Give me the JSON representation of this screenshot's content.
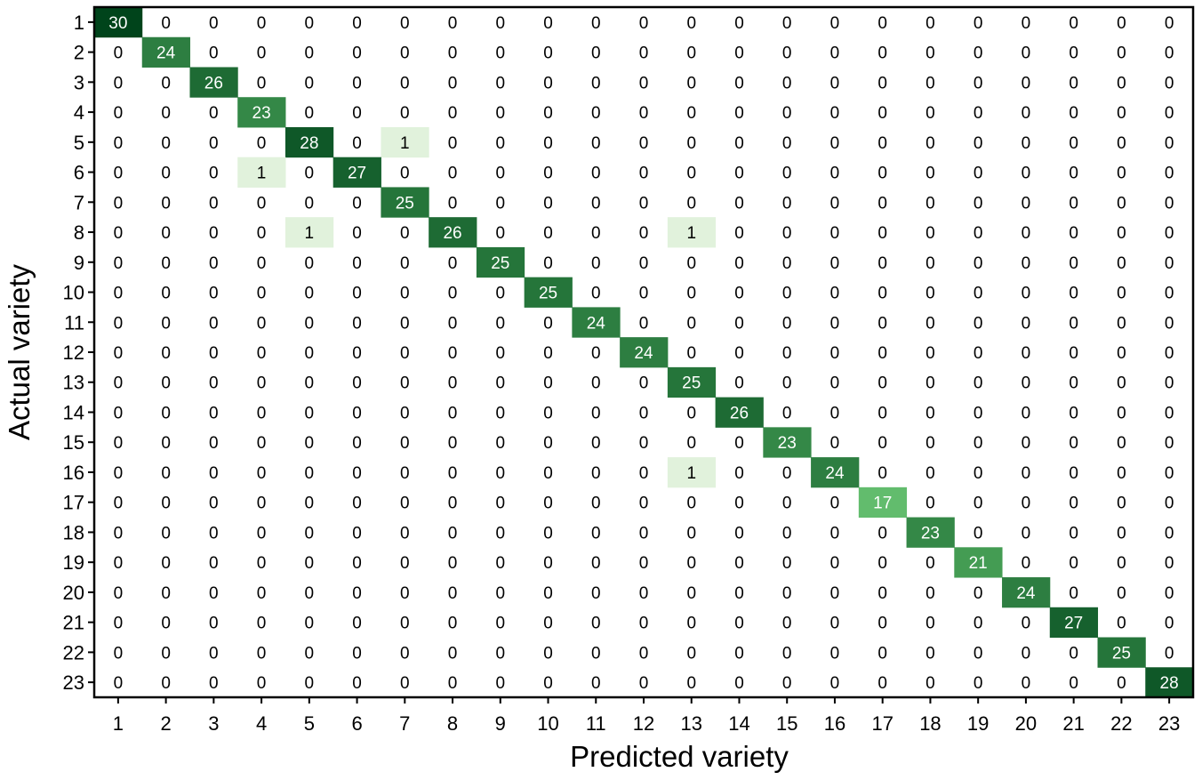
{
  "chart_data": {
    "type": "heatmap",
    "title": "",
    "xlabel": "Predicted variety",
    "ylabel": "Actual variety",
    "x_categories": [
      "1",
      "2",
      "3",
      "4",
      "5",
      "6",
      "7",
      "8",
      "9",
      "10",
      "11",
      "12",
      "13",
      "14",
      "15",
      "16",
      "17",
      "18",
      "19",
      "20",
      "21",
      "22",
      "23"
    ],
    "y_categories": [
      "1",
      "2",
      "3",
      "4",
      "5",
      "6",
      "7",
      "8",
      "9",
      "10",
      "11",
      "12",
      "13",
      "14",
      "15",
      "16",
      "17",
      "18",
      "19",
      "20",
      "21",
      "22",
      "23"
    ],
    "values": [
      [
        30,
        0,
        0,
        0,
        0,
        0,
        0,
        0,
        0,
        0,
        0,
        0,
        0,
        0,
        0,
        0,
        0,
        0,
        0,
        0,
        0,
        0,
        0
      ],
      [
        0,
        24,
        0,
        0,
        0,
        0,
        0,
        0,
        0,
        0,
        0,
        0,
        0,
        0,
        0,
        0,
        0,
        0,
        0,
        0,
        0,
        0,
        0
      ],
      [
        0,
        0,
        26,
        0,
        0,
        0,
        0,
        0,
        0,
        0,
        0,
        0,
        0,
        0,
        0,
        0,
        0,
        0,
        0,
        0,
        0,
        0,
        0
      ],
      [
        0,
        0,
        0,
        23,
        0,
        0,
        0,
        0,
        0,
        0,
        0,
        0,
        0,
        0,
        0,
        0,
        0,
        0,
        0,
        0,
        0,
        0,
        0
      ],
      [
        0,
        0,
        0,
        0,
        28,
        0,
        1,
        0,
        0,
        0,
        0,
        0,
        0,
        0,
        0,
        0,
        0,
        0,
        0,
        0,
        0,
        0,
        0
      ],
      [
        0,
        0,
        0,
        1,
        0,
        27,
        0,
        0,
        0,
        0,
        0,
        0,
        0,
        0,
        0,
        0,
        0,
        0,
        0,
        0,
        0,
        0,
        0
      ],
      [
        0,
        0,
        0,
        0,
        0,
        0,
        25,
        0,
        0,
        0,
        0,
        0,
        0,
        0,
        0,
        0,
        0,
        0,
        0,
        0,
        0,
        0,
        0
      ],
      [
        0,
        0,
        0,
        0,
        1,
        0,
        0,
        26,
        0,
        0,
        0,
        0,
        1,
        0,
        0,
        0,
        0,
        0,
        0,
        0,
        0,
        0,
        0
      ],
      [
        0,
        0,
        0,
        0,
        0,
        0,
        0,
        0,
        25,
        0,
        0,
        0,
        0,
        0,
        0,
        0,
        0,
        0,
        0,
        0,
        0,
        0,
        0
      ],
      [
        0,
        0,
        0,
        0,
        0,
        0,
        0,
        0,
        0,
        25,
        0,
        0,
        0,
        0,
        0,
        0,
        0,
        0,
        0,
        0,
        0,
        0,
        0
      ],
      [
        0,
        0,
        0,
        0,
        0,
        0,
        0,
        0,
        0,
        0,
        24,
        0,
        0,
        0,
        0,
        0,
        0,
        0,
        0,
        0,
        0,
        0,
        0
      ],
      [
        0,
        0,
        0,
        0,
        0,
        0,
        0,
        0,
        0,
        0,
        0,
        24,
        0,
        0,
        0,
        0,
        0,
        0,
        0,
        0,
        0,
        0,
        0
      ],
      [
        0,
        0,
        0,
        0,
        0,
        0,
        0,
        0,
        0,
        0,
        0,
        0,
        25,
        0,
        0,
        0,
        0,
        0,
        0,
        0,
        0,
        0,
        0
      ],
      [
        0,
        0,
        0,
        0,
        0,
        0,
        0,
        0,
        0,
        0,
        0,
        0,
        0,
        26,
        0,
        0,
        0,
        0,
        0,
        0,
        0,
        0,
        0
      ],
      [
        0,
        0,
        0,
        0,
        0,
        0,
        0,
        0,
        0,
        0,
        0,
        0,
        0,
        0,
        23,
        0,
        0,
        0,
        0,
        0,
        0,
        0,
        0
      ],
      [
        0,
        0,
        0,
        0,
        0,
        0,
        0,
        0,
        0,
        0,
        0,
        0,
        1,
        0,
        0,
        24,
        0,
        0,
        0,
        0,
        0,
        0,
        0
      ],
      [
        0,
        0,
        0,
        0,
        0,
        0,
        0,
        0,
        0,
        0,
        0,
        0,
        0,
        0,
        0,
        0,
        17,
        0,
        0,
        0,
        0,
        0,
        0
      ],
      [
        0,
        0,
        0,
        0,
        0,
        0,
        0,
        0,
        0,
        0,
        0,
        0,
        0,
        0,
        0,
        0,
        0,
        23,
        0,
        0,
        0,
        0,
        0
      ],
      [
        0,
        0,
        0,
        0,
        0,
        0,
        0,
        0,
        0,
        0,
        0,
        0,
        0,
        0,
        0,
        0,
        0,
        0,
        21,
        0,
        0,
        0,
        0
      ],
      [
        0,
        0,
        0,
        0,
        0,
        0,
        0,
        0,
        0,
        0,
        0,
        0,
        0,
        0,
        0,
        0,
        0,
        0,
        0,
        24,
        0,
        0,
        0
      ],
      [
        0,
        0,
        0,
        0,
        0,
        0,
        0,
        0,
        0,
        0,
        0,
        0,
        0,
        0,
        0,
        0,
        0,
        0,
        0,
        0,
        27,
        0,
        0
      ],
      [
        0,
        0,
        0,
        0,
        0,
        0,
        0,
        0,
        0,
        0,
        0,
        0,
        0,
        0,
        0,
        0,
        0,
        0,
        0,
        0,
        0,
        25,
        0
      ],
      [
        0,
        0,
        0,
        0,
        0,
        0,
        0,
        0,
        0,
        0,
        0,
        0,
        0,
        0,
        0,
        0,
        0,
        0,
        0,
        0,
        0,
        0,
        28
      ]
    ],
    "color_scale": {
      "low": "#e9f5e3",
      "mid": "#5ab966",
      "high": "#00441b",
      "zero": "#ffffff",
      "label_dark": "#000000",
      "label_light": "#ffffff"
    },
    "grid": false,
    "legend": "none"
  }
}
